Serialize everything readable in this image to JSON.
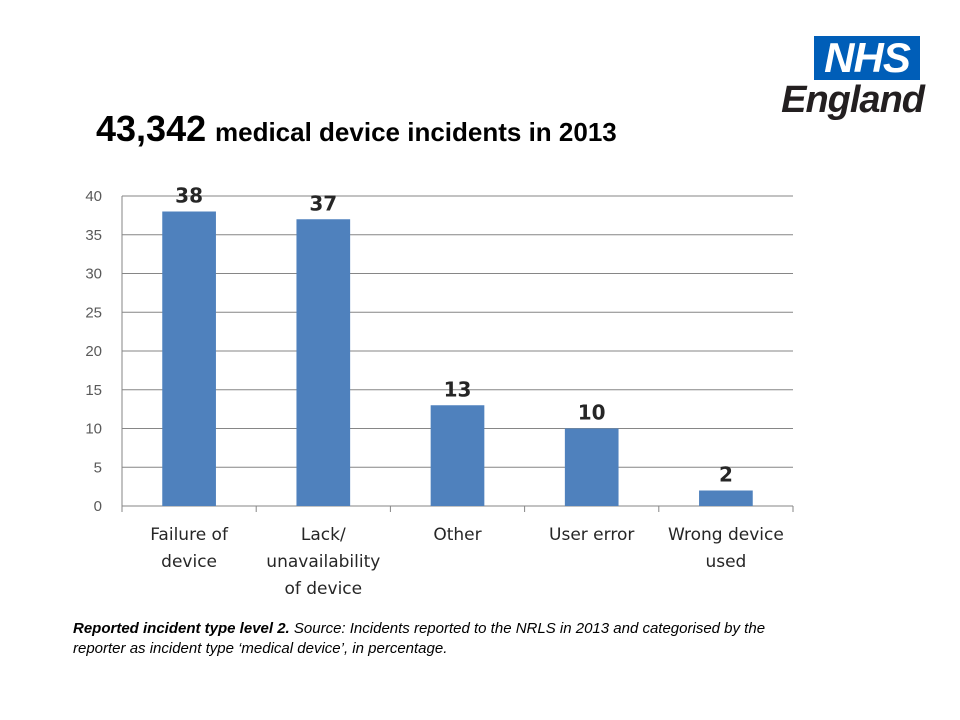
{
  "logo": {
    "mark": "NHS",
    "sub": "England"
  },
  "title": {
    "number": "43,342",
    "rest": "medical device incidents in 2013"
  },
  "caption": {
    "bold": "Reported incident type level 2.",
    "rest": "Source: Incidents reported to the NRLS in 2013 and categorised by the reporter as incident type ‘medical device’, in percentage."
  },
  "colors": {
    "bar": "#4f81bd",
    "grid": "#868686",
    "nhs_blue": "#005eb8"
  },
  "chart_data": {
    "type": "bar",
    "categories": [
      [
        "Failure of",
        "device"
      ],
      [
        "Lack/",
        "unavailability",
        "of device"
      ],
      [
        "Other"
      ],
      [
        "User error"
      ],
      [
        "Wrong device",
        "used"
      ]
    ],
    "values": [
      38,
      37,
      13,
      10,
      2
    ],
    "data_labels": [
      "38",
      "37",
      "13",
      "10",
      "2"
    ],
    "ylim": [
      0,
      40
    ],
    "yticks": [
      0,
      5,
      10,
      15,
      20,
      25,
      30,
      35,
      40
    ],
    "grid": true,
    "legend": "none"
  }
}
